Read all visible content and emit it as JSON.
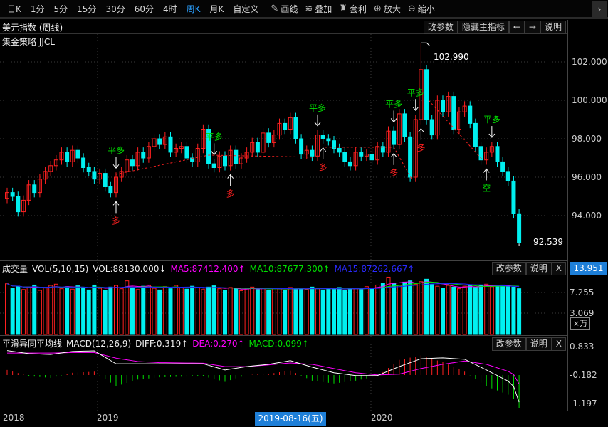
{
  "toolbar": {
    "periods": [
      "日K",
      "1分",
      "5分",
      "15分",
      "30分",
      "60分",
      "4时",
      "周K",
      "月K",
      "自定义"
    ],
    "active_period": "周K",
    "tools": [
      {
        "icon": "pencil-icon",
        "label": "画线"
      },
      {
        "icon": "stack-icon",
        "label": "叠加"
      },
      {
        "icon": "moneybag-icon",
        "label": "套利"
      },
      {
        "icon": "zoom-in-icon",
        "label": "放大"
      },
      {
        "icon": "zoom-out-icon",
        "label": "缩小"
      }
    ],
    "more_icon": "chevron-right-icon"
  },
  "main_panel": {
    "title": "美元指数 (周线)",
    "strategy": "集金策略 JJCL",
    "buttons": [
      "改参数",
      "隐藏主指标",
      "←",
      "→",
      "说明"
    ],
    "y_ticks": [
      "102.000",
      "100.000",
      "98.000",
      "96.000",
      "94.000"
    ],
    "high_label": "102.990",
    "low_label": "92.539"
  },
  "volume_panel": {
    "title": "成交量",
    "params": "VOL(5,10,15)",
    "vol": "VOL:88130.000↓",
    "ma5": "MA5:87412.400↑",
    "ma10": "MA10:87677.300↑",
    "ma15": "MA15:87262.667↑",
    "buttons": [
      "改参数",
      "说明",
      "X"
    ],
    "y_ticks": [
      "13.951",
      "7.255",
      "3.069"
    ],
    "unit": "×万"
  },
  "macd_panel": {
    "title": "平滑异同平均线",
    "params": "MACD(12,26,9)",
    "diff": "DIFF:0.319↑",
    "dea": "DEA:0.270↑",
    "macd": "MACD:0.099↑",
    "buttons": [
      "改参数",
      "说明",
      "X"
    ],
    "y_ticks": [
      "0.833",
      "-0.182",
      "-1.197"
    ]
  },
  "x_axis": {
    "labels": [
      "2018",
      "2019",
      "2020"
    ],
    "cursor_date": "2019-08-16(五)"
  },
  "colors": {
    "up": "#ff2020",
    "down": "#00f0f0",
    "ma5": "#ff00ff",
    "ma10": "#00e000",
    "ma15": "#2020ff",
    "diff": "#ffffff",
    "dea": "#ff00ff",
    "accent": "#1e7fd8"
  },
  "chart_data": [
    {
      "type": "candlestick",
      "close": [
        95.2,
        95.0,
        94.2,
        94.8,
        95.6,
        95.2,
        95.9,
        96.3,
        96.6,
        96.9,
        97.3,
        96.8,
        97.4,
        97.0,
        96.5,
        96.3,
        95.9,
        96.2,
        95.5,
        95.2,
        96.0,
        96.3,
        96.9,
        96.6,
        97.3,
        97.0,
        97.6,
        98.0,
        97.7,
        98.1,
        97.3,
        97.5,
        97.6,
        97.0,
        96.8,
        97.5,
        98.5,
        96.7,
        96.5,
        97.1,
        96.6,
        97.4,
        96.7,
        97.0,
        97.3,
        97.8,
        97.3,
        98.3,
        97.8,
        98.2,
        98.8,
        98.5,
        99.1,
        98.0,
        97.2,
        97.4,
        97.1,
        98.2,
        98.0,
        97.9,
        97.5,
        97.3,
        96.8,
        96.6,
        97.3,
        97.1,
        97.2,
        96.9,
        97.6,
        97.3,
        98.4,
        97.7,
        99.3,
        98.1,
        96.0,
        99.0,
        101.6,
        99.0,
        98.2,
        100.0,
        99.4,
        100.2,
        98.5,
        99.4,
        99.7,
        98.8,
        97.6,
        96.9,
        97.3,
        97.6,
        96.8,
        96.3,
        95.8,
        94.1,
        92.6
      ],
      "max_high": 102.99,
      "min_low": 92.539,
      "ylim": [
        92,
        103
      ],
      "signals": [
        {
          "bar": 20,
          "text": "平多",
          "kind": "close-long"
        },
        {
          "bar": 38,
          "text": "平多",
          "kind": "close-long"
        },
        {
          "bar": 57,
          "text": "平多",
          "kind": "close-long"
        },
        {
          "bar": 71,
          "text": "平多",
          "kind": "close-long"
        },
        {
          "bar": 75,
          "text": "平多",
          "kind": "close-long"
        },
        {
          "bar": 89,
          "text": "平多",
          "kind": "close-long"
        },
        {
          "bar": 20,
          "text": "多",
          "kind": "long"
        },
        {
          "bar": 41,
          "text": "多",
          "kind": "long"
        },
        {
          "bar": 58,
          "text": "多",
          "kind": "long"
        },
        {
          "bar": 71,
          "text": "多",
          "kind": "long"
        },
        {
          "bar": 76,
          "text": "多",
          "kind": "long"
        },
        {
          "bar": 88,
          "text": "空",
          "kind": "short"
        }
      ],
      "stop_line": [
        [
          [
            20,
            96.15
          ],
          [
            37,
            97.15
          ],
          [
            56.5,
            97.04
          ]
        ],
        [
          [
            58.4,
            97.56
          ],
          [
            71,
            97.56
          ],
          [
            74.4,
            95.85
          ]
        ],
        [
          [
            77.4,
            100.0
          ],
          [
            87.3,
            96.9
          ]
        ]
      ]
    },
    {
      "type": "bar",
      "unit": "万",
      "values": [
        10.2,
        9.1,
        9.6,
        8.8,
        9.4,
        9.9,
        8.6,
        9.2,
        9.8,
        10.1,
        9.0,
        9.5,
        8.9,
        9.7,
        9.3,
        8.7,
        9.9,
        9.1,
        8.6,
        9.4,
        9.8,
        9.0,
        10.9,
        9.2,
        8.8,
        9.6,
        9.9,
        9.1,
        8.7,
        9.5,
        9.0,
        9.8,
        9.3,
        8.9,
        9.6,
        9.2,
        8.8,
        9.4,
        9.7,
        9.0,
        8.6,
        9.3,
        9.1,
        8.5,
        9.0,
        9.4,
        8.8,
        9.2,
        8.7,
        9.1,
        9.0,
        8.6,
        9.3,
        8.9,
        9.2,
        8.8,
        9.4,
        9.0,
        8.7,
        9.1,
        8.9,
        9.3,
        8.6,
        9.0,
        9.2,
        8.8,
        9.5,
        9.1,
        9.9,
        10.3,
        11.8,
        10.4,
        9.8,
        10.6,
        10.9,
        10.1,
        10.7,
        11.3,
        10.0,
        9.6,
        9.2,
        9.8,
        9.4,
        9.0,
        9.6,
        9.9,
        9.3,
        9.8,
        10.1,
        9.5,
        9.7,
        9.9,
        9.6,
        9.4,
        9.0
      ],
      "ylim": [
        3.069,
        13.951
      ]
    },
    {
      "type": "line",
      "sample_every_bars": 4,
      "diff": [
        0.69,
        0.58,
        0.55,
        0.66,
        0.68,
        0.22,
        0.22,
        0.22,
        0.22,
        0.22,
        0.0,
        0.12,
        0.2,
        0.33,
        0.1,
        -0.1,
        -0.2,
        -0.2,
        0.12,
        0.4,
        0.43,
        0.38,
        0.0,
        -0.4,
        -1.15
      ],
      "dea": [
        0.6,
        0.6,
        0.6,
        0.62,
        0.62,
        0.42,
        0.3,
        0.26,
        0.25,
        0.24,
        0.12,
        0.12,
        0.18,
        0.25,
        0.2,
        0.05,
        -0.1,
        -0.18,
        -0.15,
        0.05,
        0.2,
        0.32,
        0.2,
        -0.05,
        -0.5
      ],
      "ylim": [
        -1.197,
        0.833
      ]
    }
  ]
}
